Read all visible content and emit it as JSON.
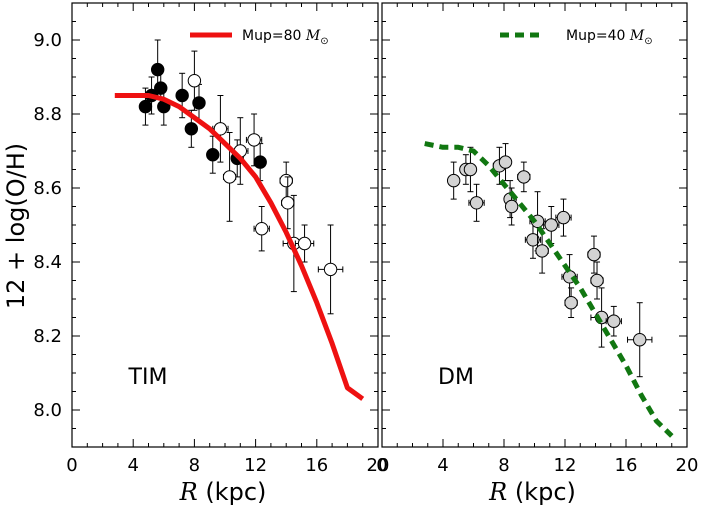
{
  "chart_data": [
    {
      "type": "scatter",
      "panel_label": "TIM",
      "xlabel_symbol": "R",
      "xlabel_unit": " (kpc)",
      "ylabel": "12 + log(O/H)",
      "xlim": [
        0,
        20
      ],
      "ylim": [
        7.9,
        9.1
      ],
      "xticks": [
        0,
        4,
        8,
        12,
        16,
        20
      ],
      "yticks": [
        8.0,
        8.2,
        8.4,
        8.6,
        8.8,
        9.0
      ],
      "ytick_labels": [
        "8.0",
        "8.2",
        "8.4",
        "8.6",
        "8.8",
        "9.0"
      ],
      "legend": {
        "text": "Mup=80 ",
        "symbol": "M",
        "subscript": "⊙",
        "placement": "top-right"
      },
      "model": {
        "name": "Mup=80 M☉",
        "color": "#ee1111",
        "style": "solid",
        "x": [
          2.8,
          4.0,
          5.0,
          6.0,
          7.0,
          8.0,
          9.0,
          10.0,
          11.0,
          12.0,
          13.0,
          14.0,
          15.0,
          16.0,
          17.0,
          18.0,
          19.0
        ],
        "y": [
          8.85,
          8.85,
          8.85,
          8.84,
          8.82,
          8.79,
          8.76,
          8.72,
          8.68,
          8.63,
          8.56,
          8.48,
          8.39,
          8.29,
          8.18,
          8.06,
          8.03
        ]
      },
      "series": [
        {
          "name": "filled",
          "marker": "circle",
          "fill": "#000000",
          "points": [
            {
              "x": 4.8,
              "y": 8.82,
              "xerr": 0.3,
              "yerr": 0.05
            },
            {
              "x": 5.2,
              "y": 8.85,
              "xerr": 0.3,
              "yerr": 0.05
            },
            {
              "x": 5.6,
              "y": 8.92,
              "xerr": 0.3,
              "yerr": 0.08
            },
            {
              "x": 5.8,
              "y": 8.87,
              "xerr": 0.3,
              "yerr": 0.05
            },
            {
              "x": 6.0,
              "y": 8.82,
              "xerr": 0.3,
              "yerr": 0.05
            },
            {
              "x": 7.2,
              "y": 8.85,
              "xerr": 0.3,
              "yerr": 0.06
            },
            {
              "x": 7.8,
              "y": 8.76,
              "xerr": 0.3,
              "yerr": 0.05
            },
            {
              "x": 8.3,
              "y": 8.83,
              "xerr": 0.3,
              "yerr": 0.05
            },
            {
              "x": 9.2,
              "y": 8.69,
              "xerr": 0.3,
              "yerr": 0.05
            },
            {
              "x": 10.8,
              "y": 8.68,
              "xerr": 0.3,
              "yerr": 0.05
            },
            {
              "x": 12.3,
              "y": 8.67,
              "xerr": 0.3,
              "yerr": 0.05
            }
          ]
        },
        {
          "name": "open",
          "marker": "circle",
          "fill": "#ffffff",
          "points": [
            {
              "x": 8.0,
              "y": 8.89,
              "xerr": 0.3,
              "yerr": 0.08
            },
            {
              "x": 9.7,
              "y": 8.76,
              "xerr": 0.5,
              "yerr": 0.09
            },
            {
              "x": 10.3,
              "y": 8.63,
              "xerr": 0.4,
              "yerr": 0.12
            },
            {
              "x": 11.0,
              "y": 8.7,
              "xerr": 0.5,
              "yerr": 0.09
            },
            {
              "x": 11.9,
              "y": 8.73,
              "xerr": 0.5,
              "yerr": 0.07
            },
            {
              "x": 12.4,
              "y": 8.49,
              "xerr": 0.5,
              "yerr": 0.06
            },
            {
              "x": 14.0,
              "y": 8.62,
              "xerr": 0.4,
              "yerr": 0.05
            },
            {
              "x": 14.1,
              "y": 8.56,
              "xerr": 0.4,
              "yerr": 0.07
            },
            {
              "x": 14.5,
              "y": 8.45,
              "xerr": 0.7,
              "yerr": 0.13
            },
            {
              "x": 15.2,
              "y": 8.45,
              "xerr": 0.6,
              "yerr": 0.05
            },
            {
              "x": 16.9,
              "y": 8.38,
              "xerr": 0.8,
              "yerr": 0.12
            }
          ]
        }
      ]
    },
    {
      "type": "scatter",
      "panel_label": "DM",
      "xlabel_symbol": "R",
      "xlabel_unit": " (kpc)",
      "xlim": [
        0,
        20
      ],
      "ylim": [
        7.9,
        9.1
      ],
      "xticks": [
        0,
        4,
        8,
        12,
        16,
        20
      ],
      "legend": {
        "text": "Mup=40 ",
        "symbol": "M",
        "subscript": "⊙",
        "placement": "top-right"
      },
      "model": {
        "name": "Mup=40 M☉",
        "color": "#117711",
        "style": "dashed",
        "x": [
          2.8,
          4.0,
          5.0,
          6.0,
          7.0,
          8.0,
          9.0,
          10.0,
          11.0,
          12.0,
          13.0,
          14.0,
          15.0,
          16.0,
          17.0,
          18.0,
          19.0
        ],
        "y": [
          8.72,
          8.71,
          8.71,
          8.7,
          8.66,
          8.61,
          8.56,
          8.51,
          8.45,
          8.39,
          8.33,
          8.26,
          8.19,
          8.12,
          8.04,
          7.97,
          7.93
        ]
      },
      "series": [
        {
          "name": "gray",
          "marker": "circle",
          "fill": "#d3d3d3",
          "points": [
            {
              "x": 4.7,
              "y": 8.62,
              "xerr": 0.3,
              "yerr": 0.05
            },
            {
              "x": 5.5,
              "y": 8.65,
              "xerr": 0.3,
              "yerr": 0.04
            },
            {
              "x": 5.8,
              "y": 8.65,
              "xerr": 0.3,
              "yerr": 0.06
            },
            {
              "x": 6.2,
              "y": 8.56,
              "xerr": 0.5,
              "yerr": 0.05
            },
            {
              "x": 7.7,
              "y": 8.66,
              "xerr": 0.4,
              "yerr": 0.05
            },
            {
              "x": 8.1,
              "y": 8.67,
              "xerr": 0.3,
              "yerr": 0.05
            },
            {
              "x": 8.4,
              "y": 8.57,
              "xerr": 0.3,
              "yerr": 0.05
            },
            {
              "x": 8.5,
              "y": 8.55,
              "xerr": 0.3,
              "yerr": 0.05
            },
            {
              "x": 9.3,
              "y": 8.63,
              "xerr": 0.4,
              "yerr": 0.04
            },
            {
              "x": 9.9,
              "y": 8.46,
              "xerr": 0.5,
              "yerr": 0.05
            },
            {
              "x": 10.2,
              "y": 8.51,
              "xerr": 0.5,
              "yerr": 0.08
            },
            {
              "x": 10.5,
              "y": 8.43,
              "xerr": 0.4,
              "yerr": 0.06
            },
            {
              "x": 11.1,
              "y": 8.5,
              "xerr": 0.5,
              "yerr": 0.05
            },
            {
              "x": 11.9,
              "y": 8.52,
              "xerr": 0.5,
              "yerr": 0.05
            },
            {
              "x": 12.3,
              "y": 8.36,
              "xerr": 0.5,
              "yerr": 0.06
            },
            {
              "x": 12.4,
              "y": 8.29,
              "xerr": 0.4,
              "yerr": 0.04
            },
            {
              "x": 13.9,
              "y": 8.42,
              "xerr": 0.4,
              "yerr": 0.05
            },
            {
              "x": 14.1,
              "y": 8.35,
              "xerr": 0.4,
              "yerr": 0.05
            },
            {
              "x": 14.4,
              "y": 8.25,
              "xerr": 0.7,
              "yerr": 0.08
            },
            {
              "x": 15.2,
              "y": 8.24,
              "xerr": 0.5,
              "yerr": 0.04
            },
            {
              "x": 16.9,
              "y": 8.19,
              "xerr": 0.8,
              "yerr": 0.1
            }
          ]
        }
      ]
    }
  ]
}
